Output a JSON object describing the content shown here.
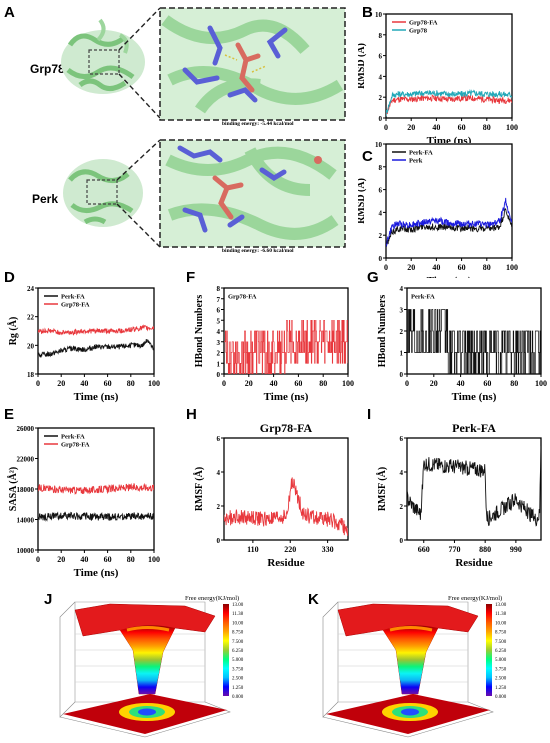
{
  "figure": {
    "protein_a": "Grp78",
    "protein_b": "Perk",
    "energy_a": "binding energy: -5.44 kcal/mol",
    "energy_b": "binding energy: -6.60 kcal/mol",
    "free_energy_title": "Free energy(KJ/mol)",
    "fel_ticks": [
      "13.00",
      "11.38",
      "10.00",
      "8.750",
      "7.500",
      "6.250",
      "5.000",
      "3.750",
      "2.500",
      "1.250",
      "0.000"
    ],
    "colors": {
      "red": "#e8383d",
      "cyan": "#23a8b8",
      "blue": "#1a1adc",
      "black": "#111111",
      "green": "#8fd08f"
    }
  },
  "chart_data": [
    {
      "id": "B",
      "type": "line",
      "title": "",
      "xlabel": "Time (ns)",
      "ylabel": "RMSD (Å)",
      "xlim": [
        0,
        100
      ],
      "ylim": [
        0,
        10
      ],
      "xticks": [
        0,
        20,
        40,
        60,
        80,
        100
      ],
      "yticks": [
        0,
        2,
        4,
        6,
        8,
        10
      ],
      "legend": "top-left",
      "series": [
        {
          "name": "Grp78-FA",
          "color": "#e8383d",
          "x": [
            0,
            5,
            10,
            20,
            30,
            40,
            50,
            60,
            70,
            80,
            90,
            100
          ],
          "y": [
            0.4,
            1.7,
            1.8,
            1.8,
            1.9,
            1.9,
            1.8,
            1.9,
            1.9,
            1.8,
            1.7,
            1.7
          ]
        },
        {
          "name": "Grp78",
          "color": "#23a8b8",
          "x": [
            0,
            5,
            10,
            20,
            30,
            40,
            50,
            60,
            70,
            80,
            90,
            100
          ],
          "y": [
            0.4,
            2.2,
            2.3,
            2.3,
            2.4,
            2.4,
            2.3,
            2.3,
            2.4,
            2.3,
            2.3,
            2.2
          ]
        }
      ]
    },
    {
      "id": "C",
      "type": "line",
      "title": "",
      "xlabel": "Time (ns)",
      "ylabel": "RMSD (Å)",
      "xlim": [
        0,
        100
      ],
      "ylim": [
        0,
        10
      ],
      "xticks": [
        0,
        20,
        40,
        60,
        80,
        100
      ],
      "yticks": [
        0,
        2,
        4,
        6,
        8,
        10
      ],
      "legend": "top-left",
      "series": [
        {
          "name": "Perk-FA",
          "color": "#111111",
          "x": [
            0,
            5,
            10,
            20,
            30,
            40,
            50,
            60,
            70,
            80,
            90,
            95,
            100
          ],
          "y": [
            1.0,
            2.3,
            2.6,
            2.5,
            2.8,
            2.7,
            2.7,
            2.6,
            2.6,
            2.5,
            2.7,
            4.2,
            2.6
          ]
        },
        {
          "name": "Perk",
          "color": "#1a1adc",
          "x": [
            0,
            5,
            10,
            20,
            30,
            40,
            50,
            60,
            70,
            80,
            90,
            95,
            100
          ],
          "y": [
            1.2,
            2.8,
            3.0,
            2.9,
            3.1,
            3.3,
            3.1,
            3.0,
            3.0,
            2.9,
            3.2,
            5.0,
            3.0
          ]
        }
      ]
    },
    {
      "id": "D",
      "type": "line",
      "title": "",
      "xlabel": "Time (ns)",
      "ylabel": "Rg (Å)",
      "xlim": [
        0,
        100
      ],
      "ylim": [
        18,
        24
      ],
      "xticks": [
        0,
        20,
        40,
        60,
        80,
        100
      ],
      "yticks": [
        18,
        20,
        22,
        24
      ],
      "legend": "top-left",
      "series": [
        {
          "name": "Perk-FA",
          "color": "#111111",
          "x": [
            0,
            10,
            20,
            30,
            40,
            50,
            60,
            70,
            80,
            90,
            95,
            100
          ],
          "y": [
            19.3,
            19.4,
            19.6,
            19.8,
            19.7,
            19.9,
            19.9,
            19.9,
            20.0,
            20.0,
            20.4,
            19.6
          ]
        },
        {
          "name": "Grp78-FA",
          "color": "#e8383d",
          "x": [
            0,
            10,
            20,
            30,
            40,
            50,
            60,
            70,
            80,
            90,
            100
          ],
          "y": [
            21.0,
            21.0,
            20.9,
            20.9,
            21.0,
            21.0,
            21.0,
            21.0,
            21.1,
            21.2,
            21.2
          ]
        }
      ]
    },
    {
      "id": "E",
      "type": "line",
      "title": "",
      "xlabel": "Time (ns)",
      "ylabel": "SASA (Å²)",
      "xlim": [
        0,
        100
      ],
      "ylim": [
        10000,
        26000
      ],
      "xticks": [
        0,
        20,
        40,
        60,
        80,
        100
      ],
      "yticks": [
        10000,
        14000,
        18000,
        22000,
        26000
      ],
      "legend": "top-left",
      "series": [
        {
          "name": "Perk-FA",
          "color": "#111111",
          "x": [
            0,
            20,
            40,
            60,
            80,
            100
          ],
          "y": [
            14300,
            14500,
            14400,
            14300,
            14400,
            14400
          ]
        },
        {
          "name": "Grp78-FA",
          "color": "#e8383d",
          "x": [
            0,
            20,
            40,
            60,
            80,
            100
          ],
          "y": [
            18200,
            17900,
            17800,
            18000,
            18200,
            18200
          ]
        }
      ]
    },
    {
      "id": "F",
      "type": "line",
      "title": "",
      "xlabel": "Time (ns)",
      "ylabel": "HBond Numbers",
      "xlim": [
        0,
        100
      ],
      "ylim": [
        0,
        8
      ],
      "xticks": [
        0,
        20,
        40,
        60,
        80,
        100
      ],
      "yticks": [
        0,
        1,
        2,
        3,
        4,
        5,
        6,
        7,
        8
      ],
      "legend": "top-left",
      "series": [
        {
          "name": "Grp78-FA",
          "color": "#e8383d",
          "x": [
            0,
            20,
            40,
            60,
            80,
            100
          ],
          "y": [
            2,
            2,
            2,
            3,
            3,
            3
          ]
        }
      ]
    },
    {
      "id": "G",
      "type": "line",
      "title": "",
      "xlabel": "Time (ns)",
      "ylabel": "HBond Numbers",
      "xlim": [
        0,
        100
      ],
      "ylim": [
        0,
        4
      ],
      "xticks": [
        0,
        20,
        40,
        60,
        80,
        100
      ],
      "yticks": [
        0,
        1,
        2,
        3,
        4
      ],
      "legend": "top-left",
      "series": [
        {
          "name": "Perk-FA",
          "color": "#111111",
          "x": [
            0,
            20,
            40,
            60,
            80,
            100
          ],
          "y": [
            2,
            2,
            1,
            1,
            1,
            1
          ]
        }
      ]
    },
    {
      "id": "H",
      "type": "line",
      "title": "Grp78-FA",
      "xlabel": "Residue",
      "ylabel": "RMSF (Å)",
      "xlim": [
        25,
        390
      ],
      "ylim": [
        0,
        6
      ],
      "xticks": [
        110,
        220,
        330
      ],
      "yticks": [
        0,
        2,
        4,
        6
      ],
      "series": [
        {
          "name": "",
          "color": "#e8383d",
          "x": [
            25,
            60,
            110,
            160,
            210,
            225,
            260,
            300,
            340,
            390
          ],
          "y": [
            1.2,
            1.4,
            1.3,
            1.2,
            1.4,
            3.5,
            1.5,
            1.3,
            1.2,
            0.6
          ]
        }
      ]
    },
    {
      "id": "I",
      "type": "line",
      "title": "Perk-FA",
      "xlabel": "Residue",
      "ylabel": "RMSF (Å)",
      "xlim": [
        600,
        1080
      ],
      "ylim": [
        0,
        6
      ],
      "xticks": [
        660,
        770,
        880,
        990
      ],
      "yticks": [
        0,
        2,
        4,
        6
      ],
      "series": [
        {
          "name": "",
          "color": "#111111",
          "x": [
            600,
            620,
            650,
            660,
            880,
            885,
            920,
            990,
            1060,
            1075,
            1080
          ],
          "y": [
            2.5,
            2.0,
            1.5,
            4.5,
            4.1,
            1.2,
            1.6,
            2.4,
            1.2,
            1.5,
            5.8
          ]
        }
      ]
    }
  ]
}
